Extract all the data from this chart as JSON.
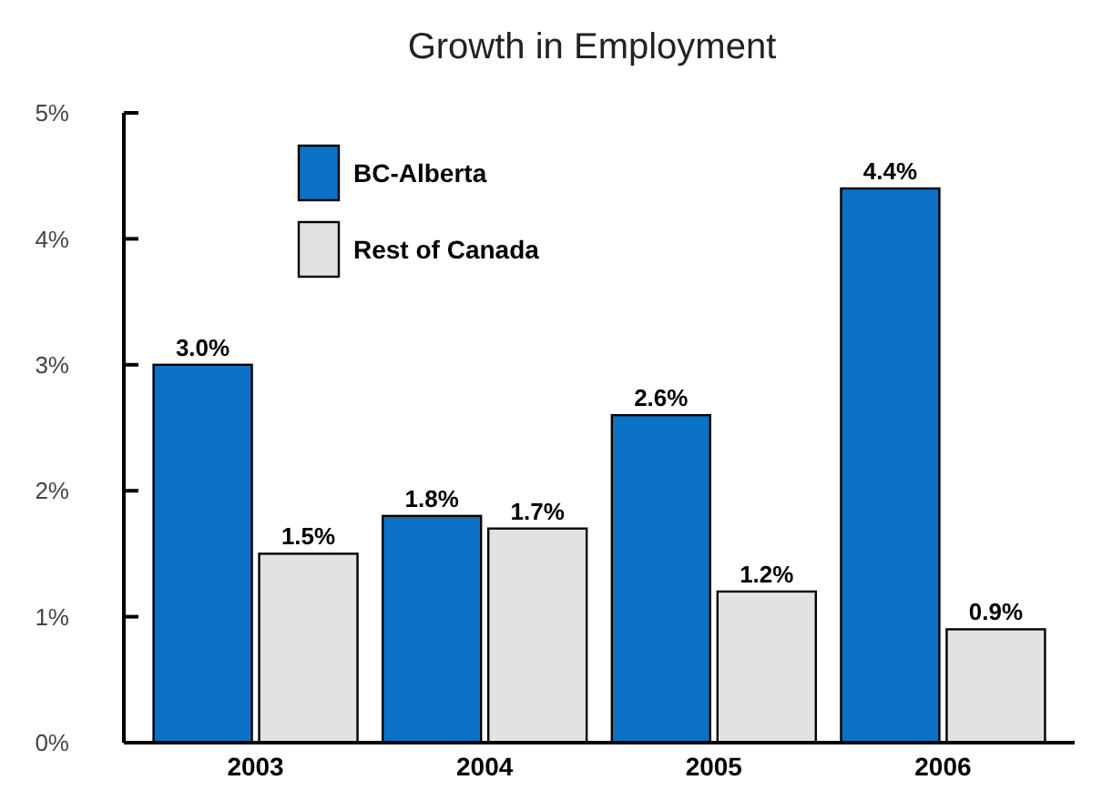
{
  "chart_data": {
    "type": "bar",
    "title": "Growth in Employment",
    "categories": [
      "2003",
      "2004",
      "2005",
      "2006"
    ],
    "series": [
      {
        "name": "BC-Alberta",
        "color": "#0b72c6",
        "values": [
          3.0,
          1.8,
          2.6,
          4.4
        ],
        "value_labels": [
          "3.0%",
          "1.8%",
          "2.6%",
          "4.4%"
        ]
      },
      {
        "name": "Rest of Canada",
        "color": "#e1e2e4",
        "values": [
          1.5,
          1.7,
          1.2,
          0.9
        ],
        "value_labels": [
          "1.5%",
          "1.7%",
          "1.2%",
          "0.9%"
        ]
      }
    ],
    "ylim": [
      0,
      5
    ],
    "yticks": [
      {
        "value": 0,
        "label": "0%"
      },
      {
        "value": 1,
        "label": "1%"
      },
      {
        "value": 2,
        "label": "2%"
      },
      {
        "value": 3,
        "label": "3%"
      },
      {
        "value": 4,
        "label": "4%"
      },
      {
        "value": 5,
        "label": "5%"
      }
    ],
    "grid": false,
    "legend": "top left"
  }
}
